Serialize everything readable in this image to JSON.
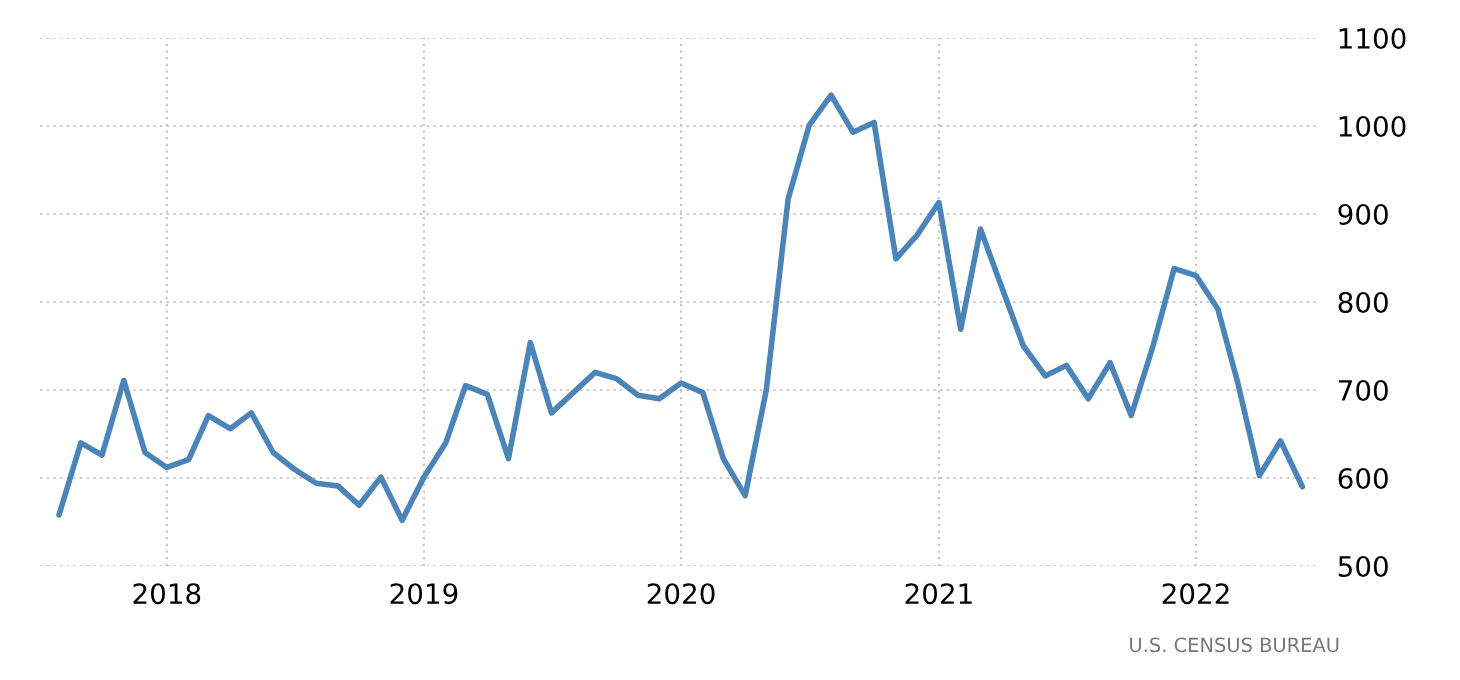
{
  "chart_data": {
    "type": "line",
    "x": [
      "2017-08",
      "2017-09",
      "2017-10",
      "2017-11",
      "2017-12",
      "2018-01",
      "2018-02",
      "2018-03",
      "2018-04",
      "2018-05",
      "2018-06",
      "2018-07",
      "2018-08",
      "2018-09",
      "2018-10",
      "2018-11",
      "2018-12",
      "2019-01",
      "2019-02",
      "2019-03",
      "2019-04",
      "2019-05",
      "2019-06",
      "2019-07",
      "2019-08",
      "2019-09",
      "2019-10",
      "2019-11",
      "2019-12",
      "2020-01",
      "2020-02",
      "2020-03",
      "2020-04",
      "2020-05",
      "2020-06",
      "2020-07",
      "2020-08",
      "2020-09",
      "2020-10",
      "2020-11",
      "2020-12",
      "2021-01",
      "2021-02",
      "2021-03",
      "2021-04",
      "2021-05",
      "2021-06",
      "2021-07",
      "2021-08",
      "2021-09",
      "2021-10",
      "2021-11",
      "2021-12",
      "2022-01",
      "2022-02",
      "2022-03",
      "2022-04",
      "2022-05",
      "2022-06"
    ],
    "series": [
      {
        "color": "#4a84b8",
        "values": [
          558,
          640,
          626,
          711,
          629,
          612,
          621,
          671,
          656,
          674,
          629,
          610,
          594,
          591,
          569,
          601,
          552,
          601,
          640,
          705,
          695,
          622,
          754,
          674,
          697,
          720,
          713,
          694,
          690,
          708,
          697,
          622,
          580,
          700,
          917,
          1001,
          1035,
          993,
          1004,
          849,
          876,
          913,
          769,
          883,
          815,
          750,
          716,
          728,
          690,
          731,
          671,
          750,
          838,
          830,
          792,
          709,
          603,
          642,
          590
        ]
      }
    ],
    "xlim": [
      "2017-07-05",
      "2022-06-26"
    ],
    "xticks": [
      "2018",
      "2019",
      "2020",
      "2021",
      "2022"
    ],
    "ylim": [
      500,
      1100
    ],
    "yticks": [
      500,
      600,
      700,
      800,
      900,
      1000,
      1100
    ],
    "grid": true,
    "line_style": "solid",
    "annotations": [
      "U.S. CENSUS BUREAU"
    ]
  }
}
